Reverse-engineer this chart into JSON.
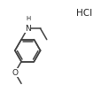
{
  "bg_color": "#ffffff",
  "line_color": "#404040",
  "text_color": "#202020",
  "line_width": 1.1,
  "hcl_text": "HCl",
  "h_text": "H",
  "n_text": "N",
  "o_text": "O"
}
